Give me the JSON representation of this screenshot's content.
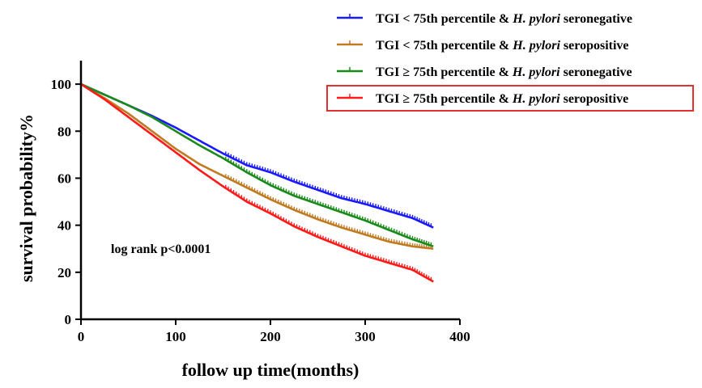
{
  "chart_data": {
    "type": "line",
    "title": "",
    "xlabel": "follow up time(months)",
    "ylabel": "survival probability%",
    "xlim": [
      0,
      400
    ],
    "ylim": [
      0,
      110
    ],
    "xticks": [
      0,
      100,
      200,
      300,
      400
    ],
    "yticks": [
      0,
      20,
      40,
      60,
      80,
      100
    ],
    "grid": false,
    "legend_position": "top-right",
    "annotation": "log rank p<0.0001",
    "series": [
      {
        "name": "TGI < 75th percentile & H. pylori seronegative",
        "name_parts": [
          "TGI < 75th percentile & ",
          "H. pylori",
          " seronegative"
        ],
        "color": "#1a1aff",
        "x": [
          0,
          25,
          50,
          75,
          100,
          125,
          150,
          175,
          200,
          225,
          250,
          275,
          300,
          325,
          350,
          372
        ],
        "y": [
          100,
          95.5,
          91,
          86.5,
          81.5,
          76,
          70.5,
          65.5,
          62.5,
          58.5,
          55,
          51.5,
          49,
          46,
          43,
          39
        ]
      },
      {
        "name": "TGI < 75th percentile & H. pylori seropositive",
        "name_parts": [
          "TGI < 75th percentile & ",
          "H. pylori",
          " seropositive"
        ],
        "color": "#c07a20",
        "x": [
          0,
          25,
          50,
          75,
          100,
          125,
          150,
          175,
          200,
          225,
          250,
          275,
          300,
          325,
          350,
          372
        ],
        "y": [
          100,
          94,
          87.5,
          80,
          72.5,
          66,
          61,
          56,
          51,
          46.5,
          42.5,
          39,
          36,
          33,
          31,
          30
        ]
      },
      {
        "name": "TGI ≥ 75th percentile & H. pylori seronegative",
        "name_parts": [
          "TGI ≥ 75th percentile & ",
          "H. pylori",
          " seronegative"
        ],
        "color": "#1a8a1a",
        "x": [
          0,
          25,
          50,
          75,
          100,
          125,
          150,
          175,
          200,
          225,
          250,
          275,
          300,
          325,
          350,
          372
        ],
        "y": [
          100,
          95.5,
          91,
          86,
          80,
          74,
          68.5,
          62.5,
          57,
          52.5,
          49,
          45.5,
          42,
          38,
          34,
          31
        ]
      },
      {
        "name": "TGI ≥ 75th percentile & H. pylori seropositive",
        "name_parts": [
          "TGI ≥ 75th percentile & ",
          "H. pylori",
          " seropositive"
        ],
        "color": "#ff1a1a",
        "x": [
          0,
          25,
          50,
          75,
          100,
          125,
          150,
          175,
          200,
          225,
          250,
          275,
          300,
          325,
          350,
          372
        ],
        "y": [
          100,
          93.5,
          86,
          78.5,
          71,
          63.5,
          56.5,
          50,
          45,
          39.5,
          35,
          31,
          27,
          24,
          21,
          16
        ]
      }
    ],
    "highlighted_legend_entry": 3,
    "highlight_color": "#e03030"
  }
}
